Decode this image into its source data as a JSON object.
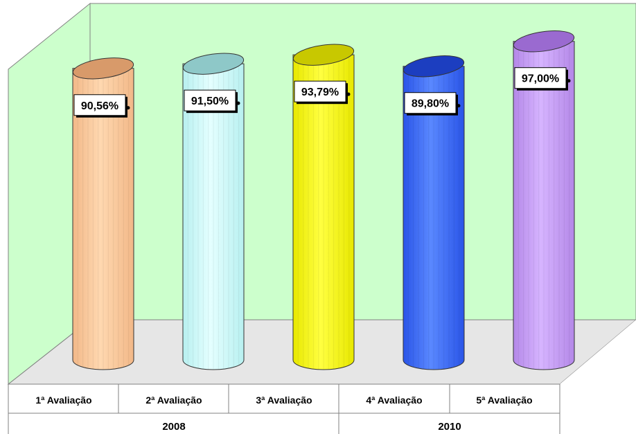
{
  "chart_data": {
    "type": "bar",
    "style": "3d-cylinder",
    "categories": [
      "1ª Avaliação",
      "2ª Avaliação",
      "3ª Avaliação",
      "4ª Avaliação",
      "5ª Avaliação"
    ],
    "groups": [
      {
        "label": "2008",
        "categories": [
          "1ª Avaliação",
          "2ª Avaliação",
          "3ª Avaliação"
        ]
      },
      {
        "label": "2010",
        "categories": [
          "4ª Avaliação",
          "5ª Avaliação"
        ]
      }
    ],
    "values": [
      90.56,
      91.5,
      93.79,
      89.8,
      97.0
    ],
    "data_labels": [
      "90,56%",
      "91,50%",
      "93,79%",
      "89,80%",
      "97,00%"
    ],
    "colors": [
      "#f2b888",
      "#b8f0f0",
      "#e8e800",
      "#2a55e8",
      "#b488e8"
    ],
    "colors_light": [
      "#ffd8b0",
      "#e4ffff",
      "#ffff40",
      "#5a88ff",
      "#d6b4ff"
    ],
    "colors_top": [
      "#d89a6a",
      "#8ec8c8",
      "#c8c800",
      "#1c3ec0",
      "#9a6ad0"
    ],
    "wall_color": "#ccffcc",
    "floor_color": "#e6e6e6",
    "ylim": [
      0,
      100
    ],
    "gridlines": false,
    "legend": "none",
    "title": "",
    "xlabel": "",
    "ylabel": ""
  }
}
